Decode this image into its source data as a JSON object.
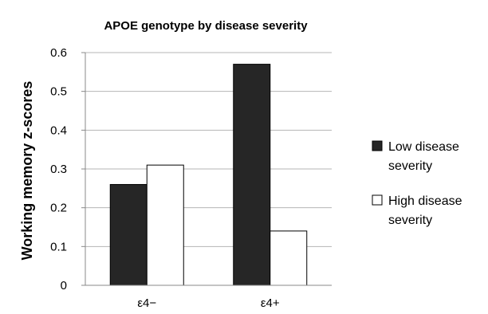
{
  "chart_data": {
    "type": "bar",
    "title": "APOE genotype by disease severity",
    "xlabel": "",
    "ylabel": "Working memory z-scores",
    "categories": [
      "ε4−",
      "ε4+"
    ],
    "series": [
      {
        "name": "Low disease severity",
        "values": [
          0.26,
          0.57
        ],
        "color": "#262626"
      },
      {
        "name": "High disease severity",
        "values": [
          0.31,
          0.14
        ],
        "color": "#ffffff"
      }
    ],
    "ylim": [
      0,
      0.6
    ],
    "yticks": [
      "0",
      "0.1",
      "0.2",
      "0.3",
      "0.4",
      "0.5",
      "0.6"
    ],
    "grid": true,
    "legend_position": "right"
  }
}
